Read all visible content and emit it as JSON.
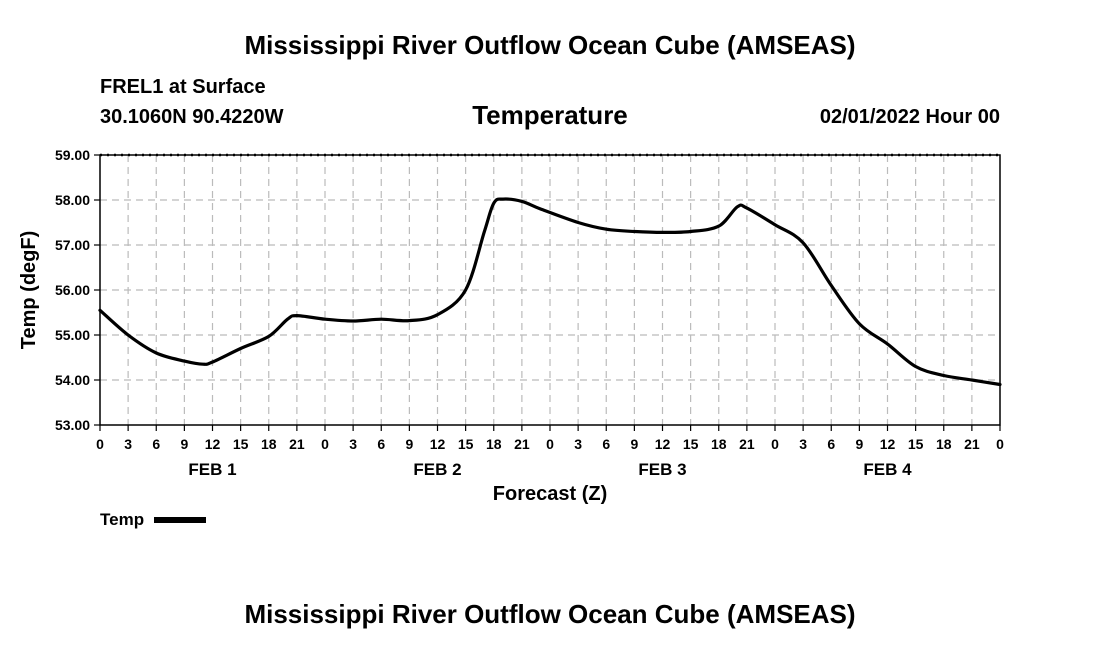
{
  "header": {
    "title": "Mississippi River Outflow Ocean Cube (AMSEAS)",
    "station": "FREL1 at Surface",
    "coords": "30.1060N  90.4220W",
    "subtitle": "Temperature",
    "datetime": "02/01/2022 Hour 00"
  },
  "footer": {
    "title": "Mississippi River Outflow Ocean Cube (AMSEAS)"
  },
  "legend": {
    "label": "Temp",
    "color": "#000000"
  },
  "chart_data": {
    "type": "line",
    "title": "Temperature",
    "xlabel": "Forecast (Z)",
    "ylabel": "Temp (degF)",
    "ylim": [
      53,
      59
    ],
    "xlim": [
      0,
      96
    ],
    "yticks": [
      "53.00",
      "54.00",
      "55.00",
      "56.00",
      "57.00",
      "58.00",
      "59.00"
    ],
    "xtick_labels": [
      "0",
      "3",
      "6",
      "9",
      "12",
      "15",
      "18",
      "21",
      "0",
      "3",
      "6",
      "9",
      "12",
      "15",
      "18",
      "21",
      "0",
      "3",
      "6",
      "9",
      "12",
      "15",
      "18",
      "21",
      "0",
      "3",
      "6",
      "9",
      "12",
      "15",
      "18",
      "21",
      "0"
    ],
    "day_labels": [
      {
        "label": "FEB 1",
        "hour": 12
      },
      {
        "label": "FEB 2",
        "hour": 36
      },
      {
        "label": "FEB 3",
        "hour": 60
      },
      {
        "label": "FEB 4",
        "hour": 84
      }
    ],
    "grid": true,
    "series": [
      {
        "name": "Temp",
        "color": "#000000",
        "x": [
          0,
          3,
          6,
          9,
          11,
          12,
          15,
          18,
          20,
          21,
          24,
          27,
          30,
          33,
          36,
          39,
          41,
          42,
          43,
          45,
          47,
          51,
          54,
          57,
          60,
          63,
          66,
          68,
          69,
          72,
          75,
          78,
          81,
          84,
          87,
          90,
          93,
          96
        ],
        "values": [
          55.55,
          55.0,
          54.6,
          54.42,
          54.35,
          54.4,
          54.7,
          54.97,
          55.35,
          55.43,
          55.35,
          55.31,
          55.35,
          55.32,
          55.45,
          56.0,
          57.3,
          57.93,
          58.02,
          57.97,
          57.8,
          57.5,
          57.35,
          57.3,
          57.28,
          57.3,
          57.42,
          57.85,
          57.82,
          57.45,
          57.05,
          56.1,
          55.25,
          54.8,
          54.3,
          54.1,
          54.0,
          53.9
        ]
      }
    ]
  }
}
